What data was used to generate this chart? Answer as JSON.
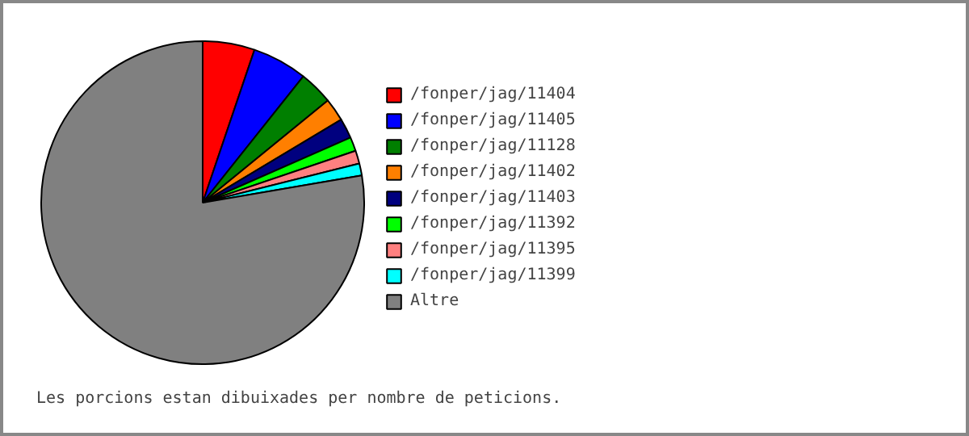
{
  "chart_data": {
    "type": "pie",
    "categories": [
      "/fonper/jag/11404",
      "/fonper/jag/11405",
      "/fonper/jag/11128",
      "/fonper/jag/11402",
      "/fonper/jag/11403",
      "/fonper/jag/11392",
      "/fonper/jag/11395",
      "/fonper/jag/11399",
      "Altre"
    ],
    "values": [
      5.2,
      5.5,
      3.4,
      2.3,
      2.0,
      1.4,
      1.3,
      1.2,
      77.7
    ],
    "colors": [
      "#ff0000",
      "#0000ff",
      "#007f00",
      "#ff7f00",
      "#00007f",
      "#00ff00",
      "#ff8080",
      "#00ffff",
      "#808080"
    ],
    "legend": "right",
    "annotations": [
      "Les porcions estan dibuixades per nombre de peticions."
    ]
  }
}
